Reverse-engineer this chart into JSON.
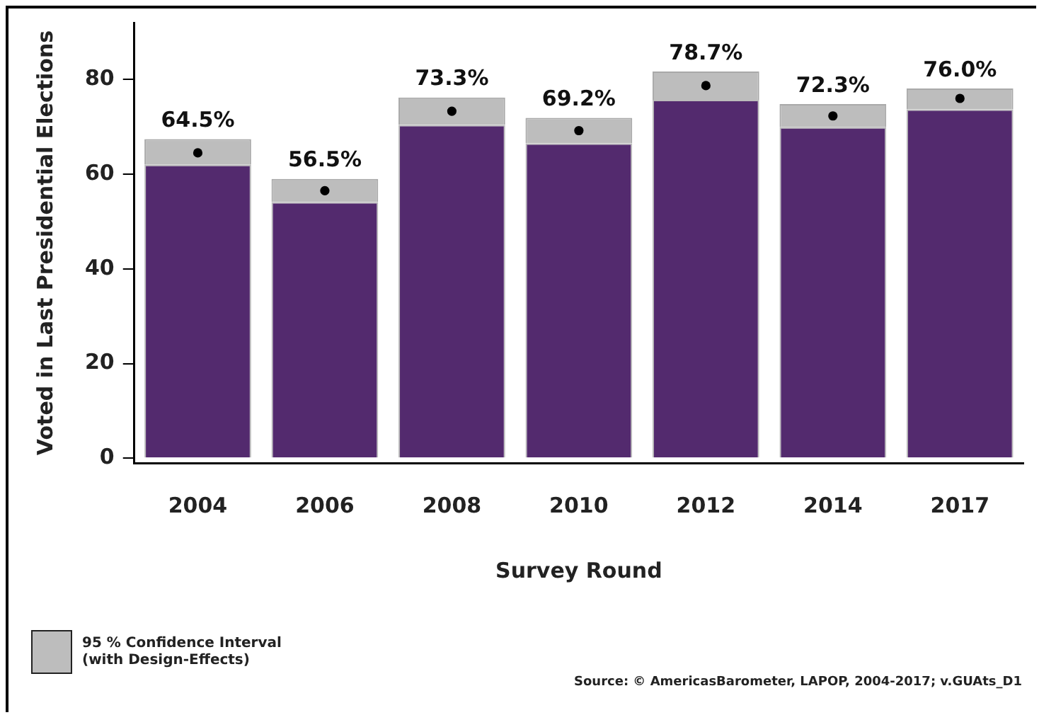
{
  "chart_data": {
    "type": "bar",
    "stacked": true,
    "xlabel": "Survey Round",
    "ylabel": "Voted in Last Presidential Elections",
    "categories": [
      "2004",
      "2006",
      "2008",
      "2010",
      "2012",
      "2014",
      "2017"
    ],
    "series": [
      {
        "color": "#532a6e",
        "values": [
          62.0,
          54.1,
          70.4,
          66.5,
          75.7,
          69.9,
          73.7
        ]
      },
      {
        "name": "95 % Confidence Interval\n(with Design-Effects)",
        "color": "#bdbdbd",
        "values": [
          5.4,
          4.9,
          5.8,
          5.4,
          6.0,
          4.9,
          4.4
        ]
      },
      {
        "type": "scatter",
        "marker": "circle",
        "color": "#000000",
        "values": [
          64.5,
          56.5,
          73.3,
          69.2,
          78.7,
          72.3,
          76.0
        ],
        "value_labels": [
          "64.5%",
          "56.5%",
          "73.3%",
          "69.2%",
          "78.7%",
          "72.3%",
          "76.0%"
        ]
      }
    ],
    "legend": "bottom left",
    "ylim": [
      -1,
      92
    ],
    "yticks": [
      0,
      20,
      40,
      60,
      80
    ],
    "grid": false,
    "annotations": [
      "Source: © AmericasBarometer, LAPOP, 2004-2017; v.GUAts_D1"
    ]
  }
}
